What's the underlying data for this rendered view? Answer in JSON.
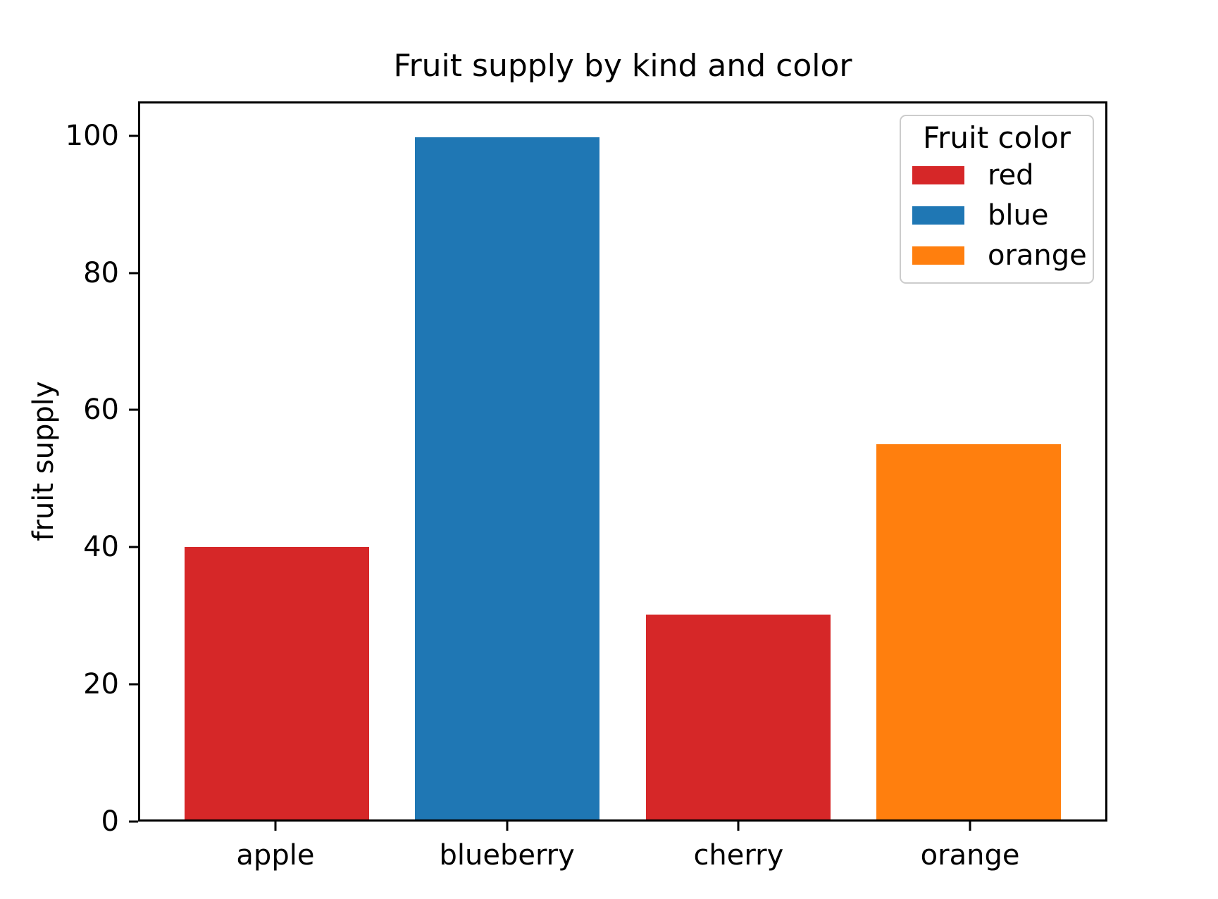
{
  "chart_data": {
    "type": "bar",
    "title": "Fruit supply by kind and color",
    "xlabel": "",
    "ylabel": "fruit supply",
    "categories": [
      "apple",
      "blueberry",
      "cherry",
      "orange"
    ],
    "values": [
      40,
      100,
      30,
      55
    ],
    "bar_colors": [
      "#d62728",
      "#1f77b4",
      "#d62728",
      "#ff7f0e"
    ],
    "bar_width": 0.8,
    "xlim": [
      -0.593,
      3.593
    ],
    "ylim": [
      0,
      105
    ],
    "yticks": [
      0,
      20,
      40,
      60,
      80,
      100
    ],
    "grid": false,
    "background": "#ffffff",
    "axis_color": "#000000",
    "legend": {
      "title": "Fruit color",
      "position": "upper right",
      "entries": [
        {
          "label": "red",
          "color": "#d62728"
        },
        {
          "label": "blue",
          "color": "#1f77b4"
        },
        {
          "label": "orange",
          "color": "#ff7f0e"
        }
      ]
    }
  }
}
